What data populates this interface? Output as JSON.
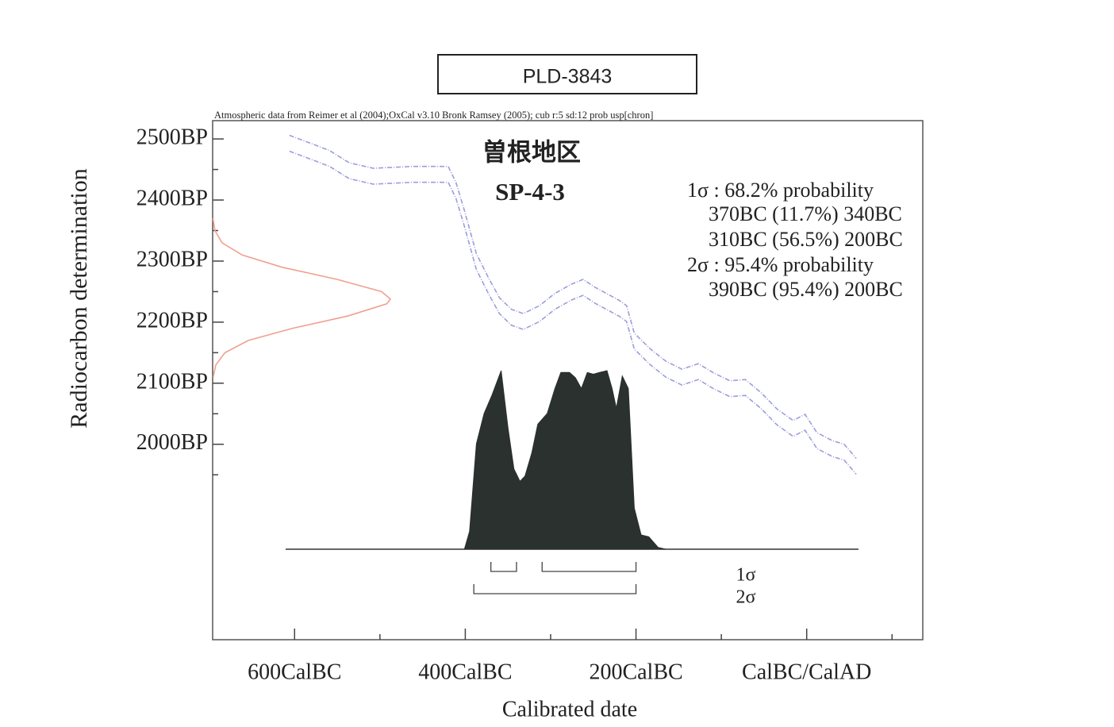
{
  "chart_data": {
    "type": "calibration",
    "title": "PLD-3843",
    "note": "Atmospheric data from Reimer et al (2004);OxCal v3.10 Bronk Ramsey (2005); cub r:5 sd:12 prob usp[chron]",
    "site": "曽根地区",
    "sample": "SP-4-3",
    "results": [
      "1σ : 68.2% probability",
      "370BC (11.7%) 340BC",
      "310BC (56.5%) 200BC",
      "2σ : 95.4% probability",
      "390BC (95.4%) 200BC"
    ],
    "x_label": "Calibrated date",
    "y_label": "Radiocarbon determination",
    "xlim": [
      -696,
      136
    ],
    "ylim": [
      1680,
      2530
    ],
    "xticks": [
      {
        "value": -600,
        "label": "600CalBC"
      },
      {
        "value": -400,
        "label": "400CalBC"
      },
      {
        "value": -200,
        "label": "200CalBC"
      },
      {
        "value": 0,
        "label": "CalBC/CalAD"
      }
    ],
    "xminorticks": [
      -500,
      -300,
      -100,
      100
    ],
    "yticks": [
      {
        "value": 2500,
        "label": "2500BP"
      },
      {
        "value": 2400,
        "label": "2400BP"
      },
      {
        "value": 2300,
        "label": "2300BP"
      },
      {
        "value": 2200,
        "label": "2200BP"
      },
      {
        "value": 2100,
        "label": "2100BP"
      },
      {
        "value": 2000,
        "label": "2000BP"
      }
    ],
    "yminorticks": [
      2450,
      2350,
      2250,
      2150,
      2050,
      1950
    ],
    "curve": {
      "color": "#9d9ddc",
      "x": [
        -606,
        -587,
        -559,
        -536,
        -508,
        -462,
        -420,
        -411,
        -401,
        -387,
        -373,
        -360,
        -346,
        -332,
        -313,
        -295,
        -276,
        -262,
        -248,
        -220,
        -211,
        -202,
        -183,
        -165,
        -146,
        -127,
        -109,
        -90,
        -72,
        -53,
        -35,
        -16,
        -2,
        12,
        30,
        44,
        58
      ],
      "upper": [
        2506,
        2496,
        2481,
        2461,
        2452,
        2455,
        2455,
        2429,
        2383,
        2312,
        2273,
        2240,
        2221,
        2214,
        2227,
        2247,
        2262,
        2270,
        2257,
        2236,
        2227,
        2182,
        2156,
        2136,
        2123,
        2132,
        2117,
        2104,
        2106,
        2084,
        2058,
        2039,
        2049,
        2019,
        2006,
        2000,
        1977
      ],
      "lower": [
        2480,
        2470,
        2455,
        2435,
        2426,
        2429,
        2429,
        2403,
        2357,
        2286,
        2247,
        2214,
        2195,
        2188,
        2201,
        2221,
        2236,
        2244,
        2231,
        2210,
        2201,
        2156,
        2130,
        2110,
        2097,
        2106,
        2091,
        2078,
        2080,
        2058,
        2032,
        2013,
        2023,
        1993,
        1980,
        1974,
        1951
      ]
    },
    "measurement": {
      "color": "#f0a090",
      "bp": [
        2370,
        2350,
        2330,
        2310,
        2290,
        2270,
        2250,
        2238,
        2230,
        2210,
        2190,
        2170,
        2150,
        2130,
        2110
      ],
      "density": [
        0.002,
        0.013,
        0.053,
        0.166,
        0.39,
        0.7,
        0.95,
        1,
        0.98,
        0.76,
        0.45,
        0.2,
        0.069,
        0.018,
        0.003
      ]
    },
    "probability": {
      "color": "#2b312e",
      "x": [
        -401,
        -395,
        -387,
        -378,
        -369,
        -358,
        -350,
        -343,
        -336,
        -330,
        -322,
        -315,
        -304,
        -295,
        -288,
        -278,
        -271,
        -264,
        -257,
        -250,
        -243,
        -234,
        -228,
        -223,
        -216,
        -209,
        -202,
        -194,
        -185,
        -174,
        -165
      ],
      "density": [
        0,
        0.1,
        0.59,
        0.76,
        0.86,
        1,
        0.68,
        0.45,
        0.38,
        0.41,
        0.54,
        0.7,
        0.76,
        0.9,
        0.99,
        0.99,
        0.96,
        0.9,
        0.99,
        0.98,
        0.99,
        1,
        0.9,
        0.79,
        0.97,
        0.9,
        0.23,
        0.08,
        0.07,
        0.01,
        0
      ]
    },
    "ranges": [
      {
        "label": "1σ",
        "intervals": [
          [
            -370,
            -340
          ],
          [
            -310,
            -200
          ]
        ]
      },
      {
        "label": "2σ",
        "intervals": [
          [
            -390,
            -200
          ]
        ]
      }
    ]
  }
}
